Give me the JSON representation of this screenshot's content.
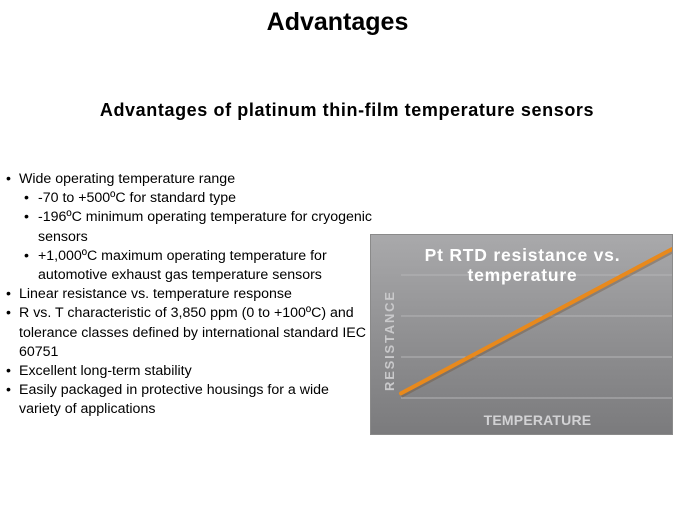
{
  "slide": {
    "title": "Advantages",
    "subtitle": "Advantages of platinum thin-film temperature sensors"
  },
  "bullets": [
    {
      "level": 1,
      "text": "Wide operating temperature range"
    },
    {
      "level": 2,
      "text": "-70 to +500ºC for standard type"
    },
    {
      "level": 2,
      "text": "-196ºC minimum operating temperature for cryogenic sensors"
    },
    {
      "level": 2,
      "text": "+1,000ºC maximum operating temperature for automotive exhaust  gas temperature sensors"
    },
    {
      "level": 1,
      "text": "Linear resistance vs. temperature response"
    },
    {
      "level": 1,
      "text": "R vs. T characteristic of 3,850 ppm (0 to +100ºC) and tolerance classes defined by international standard IEC 60751"
    },
    {
      "level": 1,
      "text": "Excellent long-term stability"
    },
    {
      "level": 1,
      "text": "Easily packaged in protective housings for a wide variety of applications"
    }
  ],
  "chart_data": {
    "type": "line",
    "title": "Pt RTD resistance vs. temperature",
    "xlabel": "TEMPERATURE",
    "ylabel": "RESISTANCE",
    "grid": true,
    "series": [
      {
        "color": "#e8891c",
        "x": [
          0,
          1
        ],
        "y": [
          0.1,
          0.92
        ]
      }
    ],
    "xlim": [
      0,
      1
    ],
    "ylim": [
      0,
      1
    ]
  }
}
